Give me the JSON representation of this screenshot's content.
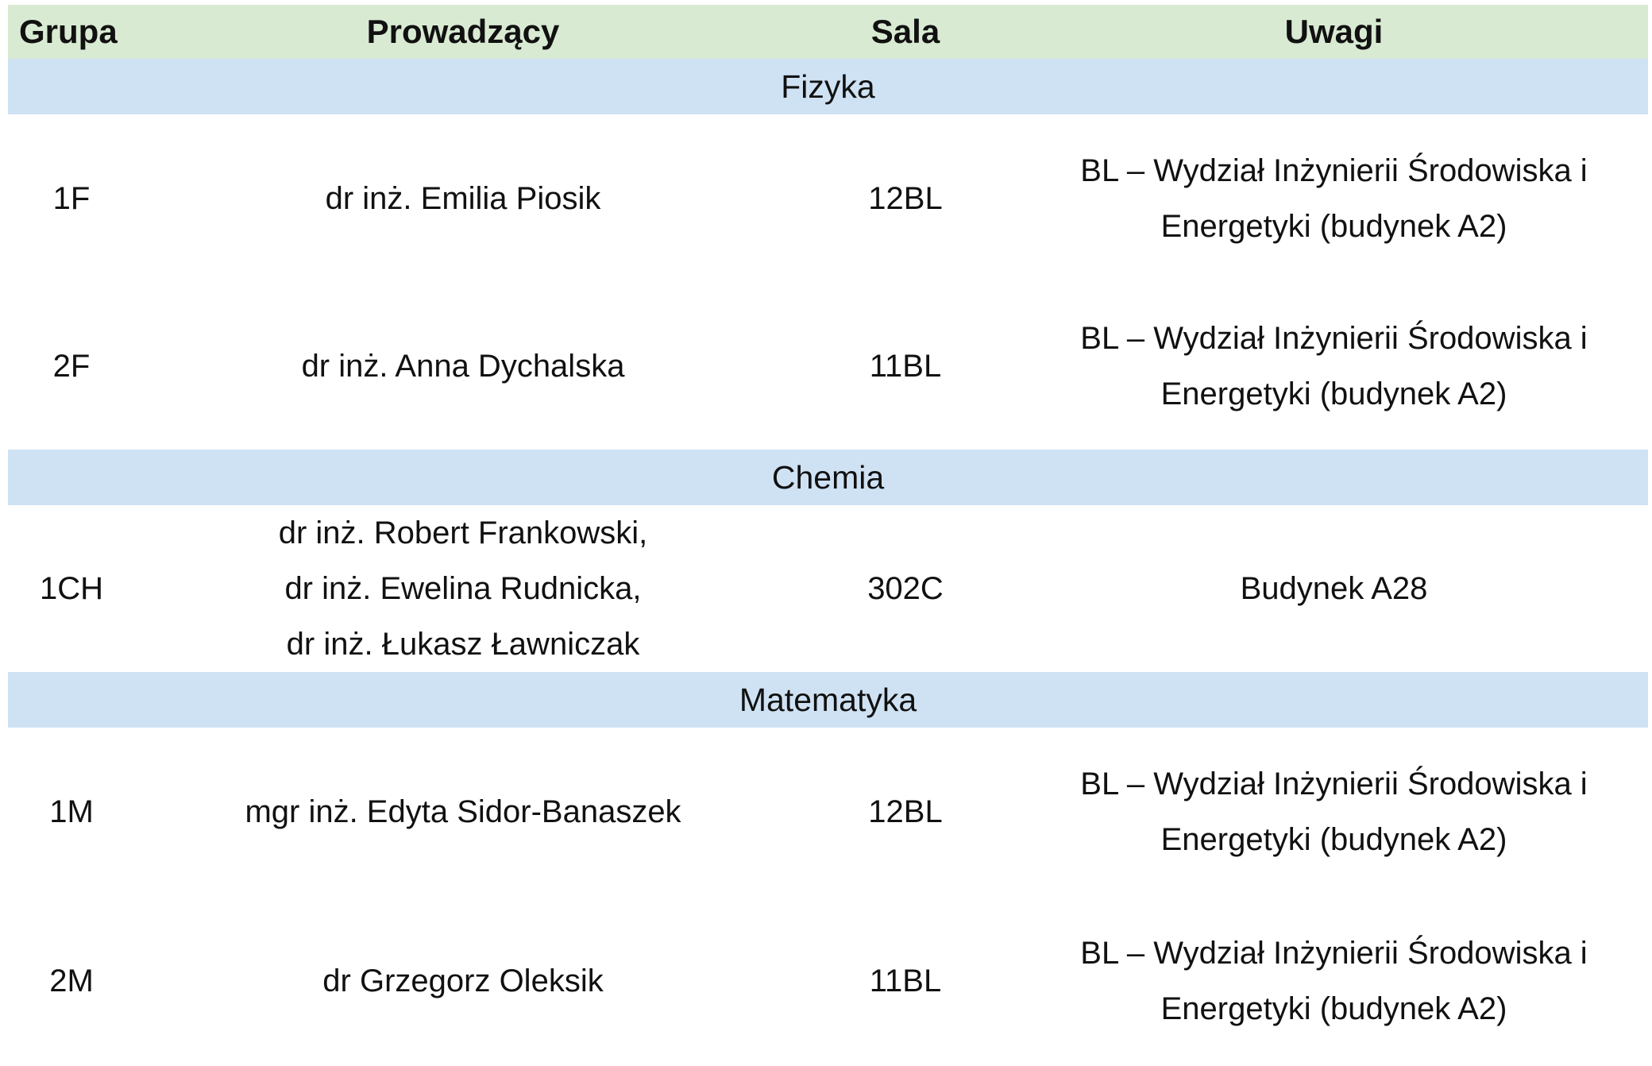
{
  "header": {
    "group": "Grupa",
    "teacher": "Prowadzący",
    "room": "Sala",
    "notes": "Uwagi"
  },
  "sections": [
    {
      "title": "Fizyka",
      "rows": [
        {
          "group": "1F",
          "teacher": [
            "dr inż. Emilia Piosik"
          ],
          "room": "12BL",
          "notes": [
            "BL – Wydział Inżynierii Środowiska i",
            "Energetyki (budynek A2)"
          ]
        },
        {
          "group": "2F",
          "teacher": [
            "dr inż. Anna Dychalska"
          ],
          "room": "11BL",
          "notes": [
            "BL – Wydział Inżynierii Środowiska i",
            "Energetyki (budynek A2)"
          ]
        }
      ]
    },
    {
      "title": "Chemia",
      "rows": [
        {
          "group": "1CH",
          "teacher": [
            "dr inż. Robert Frankowski,",
            "dr inż. Ewelina Rudnicka,",
            "dr inż. Łukasz Ławniczak"
          ],
          "room": "302C",
          "notes": [
            "Budynek A28"
          ]
        }
      ]
    },
    {
      "title": "Matematyka",
      "rows": [
        {
          "group": "1M",
          "teacher": [
            "mgr inż. Edyta Sidor-Banaszek"
          ],
          "room": "12BL",
          "notes": [
            "BL – Wydział Inżynierii Środowiska i",
            "Energetyki (budynek A2)"
          ]
        },
        {
          "group": "2M",
          "teacher": [
            "dr Grzegorz Oleksik"
          ],
          "room": "11BL",
          "notes": [
            "BL – Wydział Inżynierii Środowiska i",
            "Energetyki (budynek A2)"
          ]
        }
      ]
    }
  ],
  "colors": {
    "header_bg": "#d9ead3",
    "section_bg": "#cfe2f3"
  }
}
